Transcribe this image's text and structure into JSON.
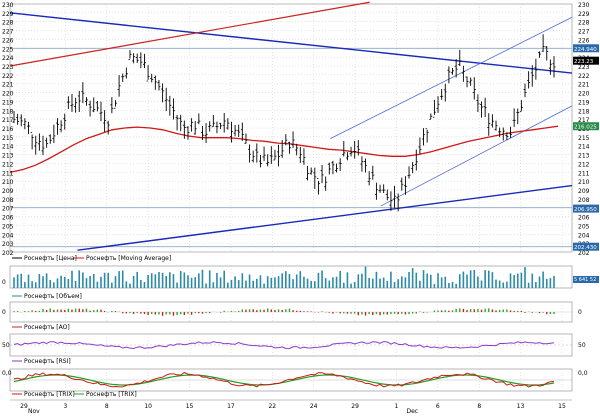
{
  "colors": {
    "grid": "#c8c8c8",
    "axis": "#000000",
    "price": "#000000",
    "ma": "#d01818",
    "trend": "#1a2ab8",
    "channel": "#4a68d8",
    "hline": "#8aa8c8",
    "volume": "#2a8aa8",
    "ao_up": "#2aaa2a",
    "ao_down": "#cc2020",
    "rsi": "#8a3acc",
    "trix": "#d01818",
    "trix_signal": "#20a020",
    "tag_bg": "#2a6aaa",
    "tag_text": "#ffffff",
    "legend_text": "#000000"
  },
  "main": {
    "ylim": [
      202,
      230
    ],
    "y_ticks": [
      "230",
      "229",
      "228",
      "227",
      "226",
      "225",
      "224",
      "223",
      "222",
      "221",
      "220",
      "219",
      "218",
      "217",
      "216",
      "215",
      "214",
      "213",
      "212",
      "211",
      "210",
      "209",
      "208",
      "207",
      "206",
      "205",
      "204",
      "203",
      "202"
    ],
    "price_tags": [
      {
        "value": 225.0,
        "label": "224.940",
        "color": "#2a6aaa"
      },
      {
        "value": 223.6,
        "label": "223.23",
        "color": "#000000"
      },
      {
        "value": 216.2,
        "label": "216.025",
        "color": "#2a8a4a"
      },
      {
        "value": 206.9,
        "label": "206.950",
        "color": "#2a6aaa"
      },
      {
        "value": 202.6,
        "label": "202.430",
        "color": "#2a6aaa"
      }
    ],
    "legend": [
      {
        "label": "Роснефть [Цена]",
        "color": "#000000"
      },
      {
        "label": "Роснефть [Moving Average]",
        "color": "#d01818"
      }
    ]
  },
  "panels": {
    "volume": {
      "legend": "Роснефть [Объем]",
      "tag": "5 641 52",
      "scale_label": "0"
    },
    "ao": {
      "legend": "Роснефть [AO]",
      "scale_top": "0",
      "scale_bottom": "0"
    },
    "rsi": {
      "legend": "Роснефть [RSI]",
      "scale_top": "50",
      "scale_bottom": "50"
    },
    "trix": {
      "legend1": "Роснефть [TRIX]",
      "legend2": "Роснефть [TRIX]",
      "scale_top": "0,0",
      "scale_bottom": "0,0",
      "left_top": "0,0",
      "left_bottom": "0,0"
    }
  },
  "x_axis": {
    "ticks": [
      "29",
      "3",
      "8",
      "10",
      "15",
      "17",
      "22",
      "24",
      "29",
      "1",
      "6",
      "8",
      "13",
      "15"
    ],
    "months": [
      "Nov",
      "Dec"
    ]
  },
  "chart_data": {
    "type": "line",
    "title": "",
    "ylim": [
      202,
      230
    ],
    "series": [
      {
        "name": "Роснефть [Цена]",
        "values": [
          217.0,
          216.5,
          215.0,
          214.0,
          216.0,
          218.0,
          219.5,
          219.0,
          218.0,
          217.0,
          221.0,
          224.0,
          223.5,
          222.0,
          220.0,
          218.0,
          216.0,
          216.5,
          215.5,
          216.0,
          217.0,
          215.5,
          214.0,
          212.5,
          212.0,
          213.0,
          214.5,
          213.5,
          211.0,
          210.0,
          211.5,
          213.0,
          214.0,
          212.0,
          210.0,
          208.5,
          207.5,
          210.0,
          213.0,
          216.0,
          219.0,
          221.5,
          223.0,
          221.0,
          218.5,
          217.0,
          216.0,
          215.5,
          219.0,
          222.0,
          224.5,
          223.5
        ]
      },
      {
        "name": "Роснефть [Moving Average]",
        "values": [
          211.0,
          211.3,
          211.8,
          212.5,
          213.3,
          214.1,
          214.8,
          215.3,
          215.8,
          216.0,
          216.1,
          216.0,
          215.8,
          215.4,
          215.1,
          214.9,
          214.9,
          214.9,
          214.8,
          214.6,
          214.5,
          214.3,
          214.2,
          214.0,
          213.8,
          213.6,
          213.5,
          213.3,
          213.1,
          212.9,
          212.8,
          212.8,
          213.0,
          213.3,
          213.7,
          214.1,
          214.5,
          214.8,
          215.1,
          215.4,
          215.6,
          215.8,
          216.0,
          216.2
        ]
      }
    ]
  }
}
